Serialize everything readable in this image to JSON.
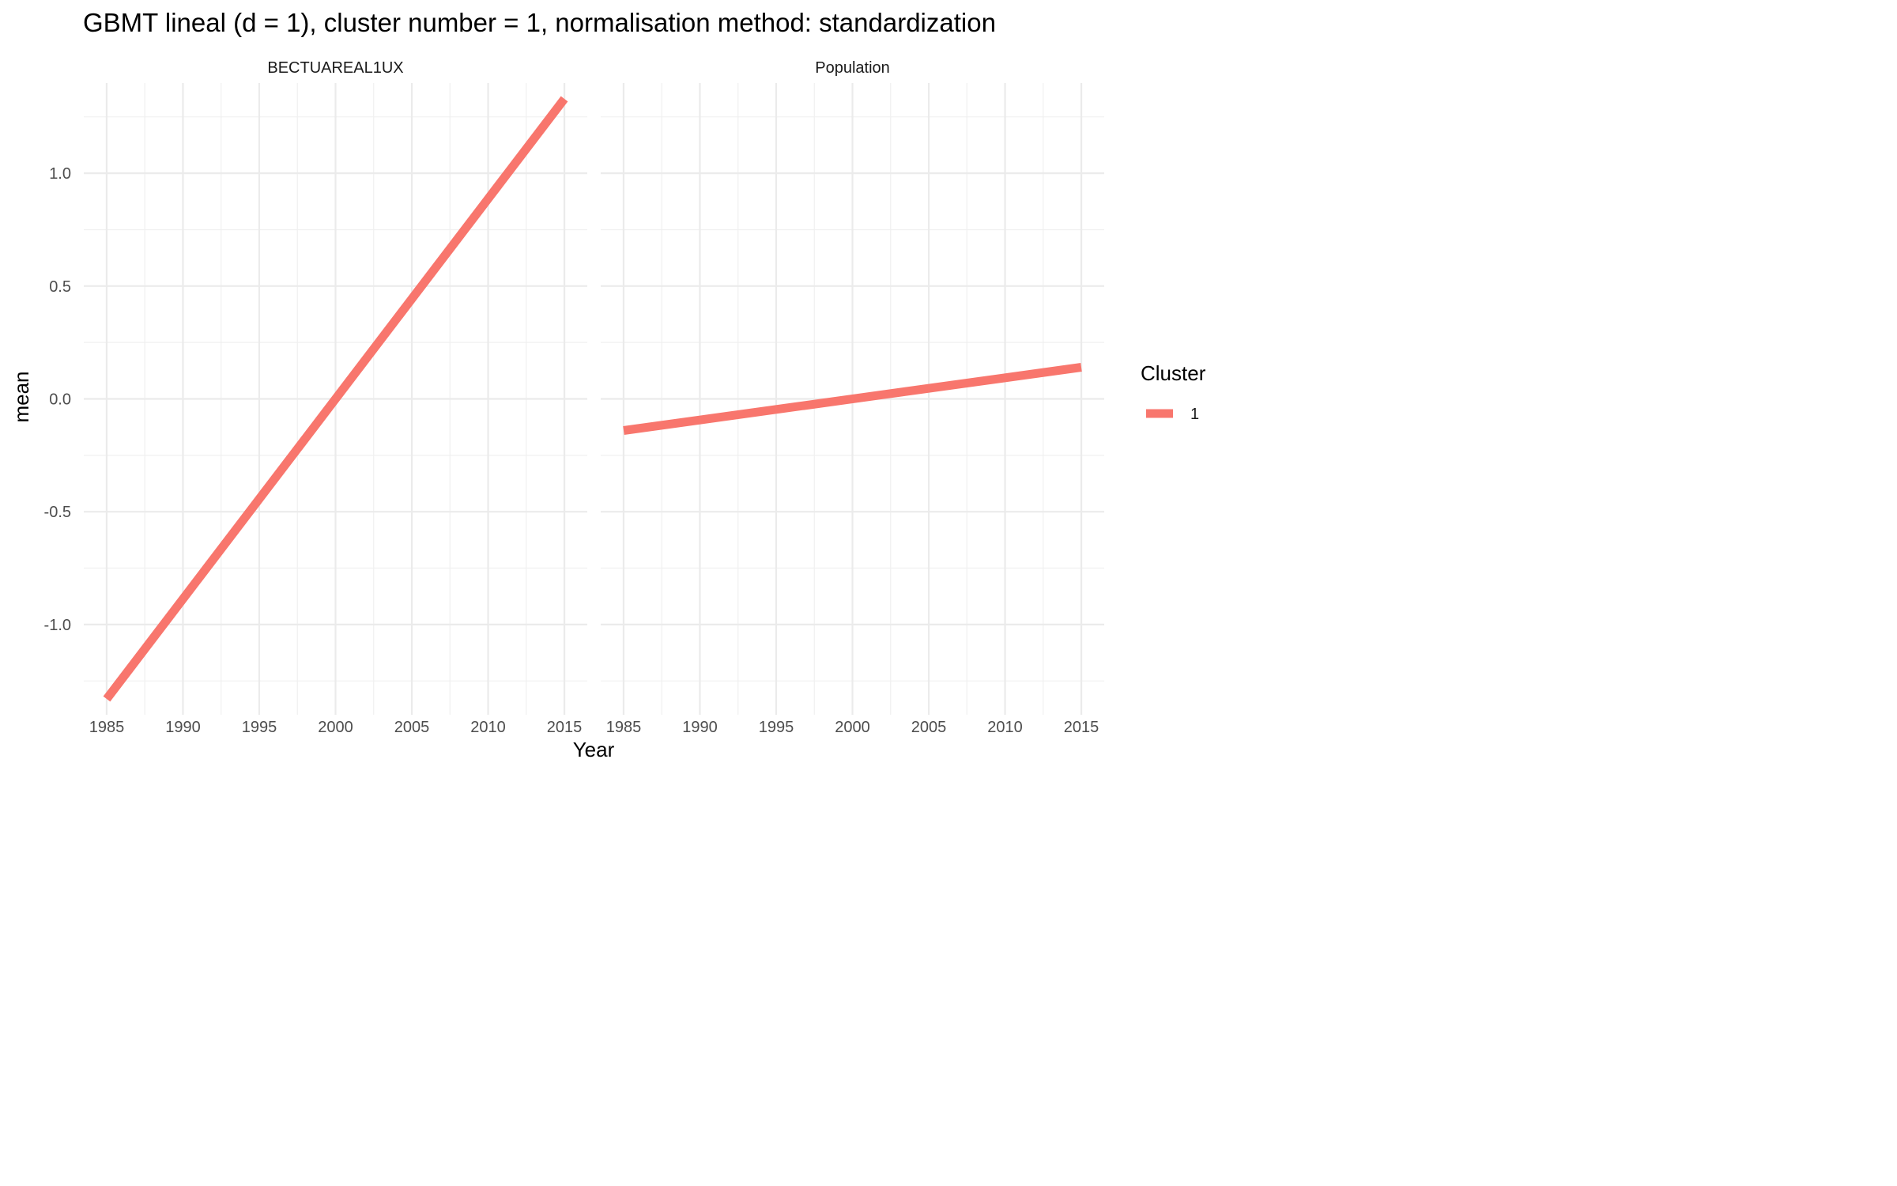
{
  "chart_data": {
    "type": "line",
    "title": "GBMT lineal (d = 1), cluster number = 1, normalisation method: standardization",
    "xlabel": "Year",
    "ylabel": "mean",
    "xlim": [
      1983.5,
      2016.5
    ],
    "ylim": [
      -1.4,
      1.4
    ],
    "x_ticks": [
      "1985",
      "1990",
      "1995",
      "2000",
      "2005",
      "2010",
      "2015"
    ],
    "y_ticks": [
      "-1.0",
      "-0.5",
      "0.0",
      "0.5",
      "1.0"
    ],
    "grid": true,
    "legend": {
      "title": "Cluster",
      "position": "right",
      "entries": [
        {
          "label": "1",
          "color": "#F8766D"
        }
      ]
    },
    "panels": [
      {
        "strip_label": "BECTUAREAL1UX",
        "series": [
          {
            "cluster": "1",
            "color": "#F8766D",
            "x": [
              1985,
              2015
            ],
            "y": [
              -1.33,
              1.33
            ]
          }
        ]
      },
      {
        "strip_label": "Population",
        "series": [
          {
            "cluster": "1",
            "color": "#F8766D",
            "x": [
              1985,
              2015
            ],
            "y": [
              -0.14,
              0.14
            ]
          }
        ]
      }
    ]
  }
}
